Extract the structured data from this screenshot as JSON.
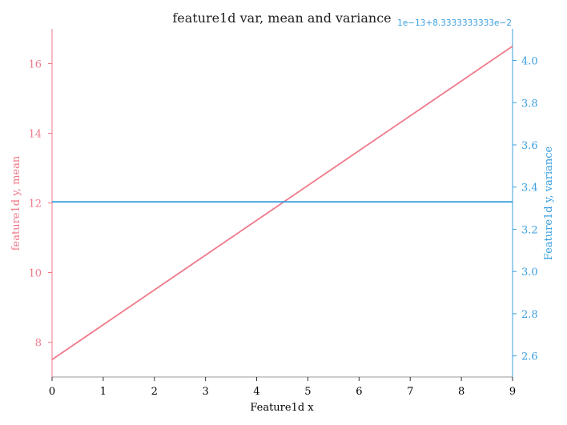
{
  "chart_data": {
    "type": "line",
    "title": "feature1d var, mean and variance",
    "xlabel": "Feature1d x",
    "ylabel_left": "feature1d y, mean",
    "ylabel_right": "Feature1d y, variance",
    "right_axis_offset": "1e−13+8.3333333333e−2",
    "x": [
      0,
      1,
      2,
      3,
      4,
      5,
      6,
      7,
      8,
      9
    ],
    "xlim": [
      0,
      9
    ],
    "xticks": [
      "0",
      "1",
      "2",
      "3",
      "4",
      "5",
      "6",
      "7",
      "8",
      "9"
    ],
    "ylim_left": [
      7.0,
      17.0
    ],
    "yticks_left": [
      "8",
      "10",
      "12",
      "14",
      "16"
    ],
    "ylim_right": [
      2.5,
      4.15
    ],
    "yticks_right": [
      "2.6",
      "2.8",
      "3.0",
      "3.2",
      "3.4",
      "3.6",
      "3.8",
      "4.0"
    ],
    "series": [
      {
        "axis": "left",
        "color": "#f07a8a",
        "values": [
          7.5,
          8.5,
          9.5,
          10.5,
          11.5,
          12.5,
          13.5,
          14.5,
          15.5,
          16.5
        ]
      },
      {
        "axis": "right",
        "color": "#3a9fe0",
        "values": [
          3.33,
          3.33,
          3.33,
          3.33,
          3.33,
          3.33,
          3.33,
          3.33,
          3.33,
          3.33
        ]
      }
    ],
    "colors": {
      "left_axis": "#f07a8a",
      "right_axis": "#3a9fe0",
      "bottom_axis": "#999999"
    },
    "grid": false
  }
}
